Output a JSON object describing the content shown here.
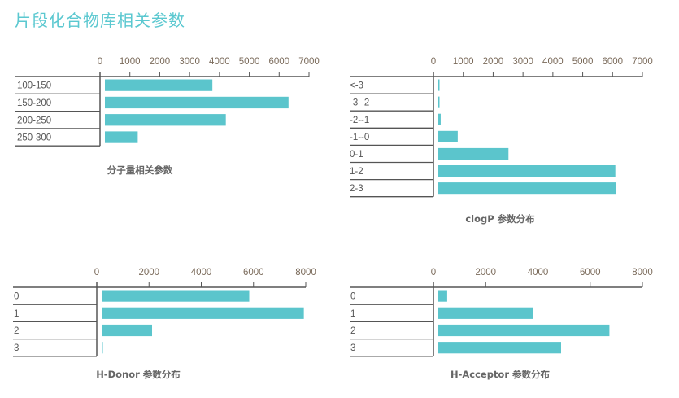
{
  "page": {
    "title": "片段化合物库相关参数"
  },
  "colors": {
    "bar": "#5bc5cc",
    "axis": "#555555",
    "title": "#5bc8d0"
  },
  "chart_data": [
    {
      "type": "bar",
      "orientation": "horizontal",
      "title": "分子量相关参数",
      "categories": [
        "100-150",
        "150-200",
        "200-250",
        "250-300"
      ],
      "values": [
        3600,
        6150,
        4050,
        1100
      ],
      "xlim": [
        0,
        7000
      ],
      "ticks": [
        "0",
        "1000",
        "2000",
        "3000",
        "4000",
        "5000",
        "6000",
        "7000"
      ],
      "tick_values": [
        0,
        1000,
        2000,
        3000,
        4000,
        5000,
        6000,
        7000
      ]
    },
    {
      "type": "bar",
      "orientation": "horizontal",
      "title": "clogP 参数分布",
      "categories": [
        "<-3",
        "-3--2",
        "-2--1",
        "-1--0",
        "0-1",
        "1-2",
        "2-3"
      ],
      "values": [
        20,
        20,
        80,
        650,
        2350,
        5930,
        5950
      ],
      "xlim": [
        0,
        7000
      ],
      "ticks": [
        "0",
        "1000",
        "2000",
        "3000",
        "4000",
        "5000",
        "6000",
        "7000"
      ],
      "tick_values": [
        0,
        1000,
        2000,
        3000,
        4000,
        5000,
        6000,
        7000
      ]
    },
    {
      "type": "bar",
      "orientation": "horizontal",
      "title": "H-Donor 参数分布",
      "categories": [
        "0",
        "1",
        "2",
        "3"
      ],
      "values": [
        5650,
        7740,
        1930,
        20
      ],
      "xlim": [
        0,
        8000
      ],
      "ticks": [
        "0",
        "2000",
        "4000",
        "6000",
        "8000"
      ],
      "tick_values": [
        0,
        2000,
        4000,
        6000,
        8000
      ]
    },
    {
      "type": "bar",
      "orientation": "horizontal",
      "title": "H-Acceptor 参数分布",
      "categories": [
        "0",
        "1",
        "2",
        "3"
      ],
      "values": [
        340,
        3640,
        6550,
        4700
      ],
      "xlim": [
        0,
        8000
      ],
      "ticks": [
        "0",
        "2000",
        "4000",
        "6000",
        "8000"
      ],
      "tick_values": [
        0,
        2000,
        4000,
        6000,
        8000
      ]
    }
  ]
}
